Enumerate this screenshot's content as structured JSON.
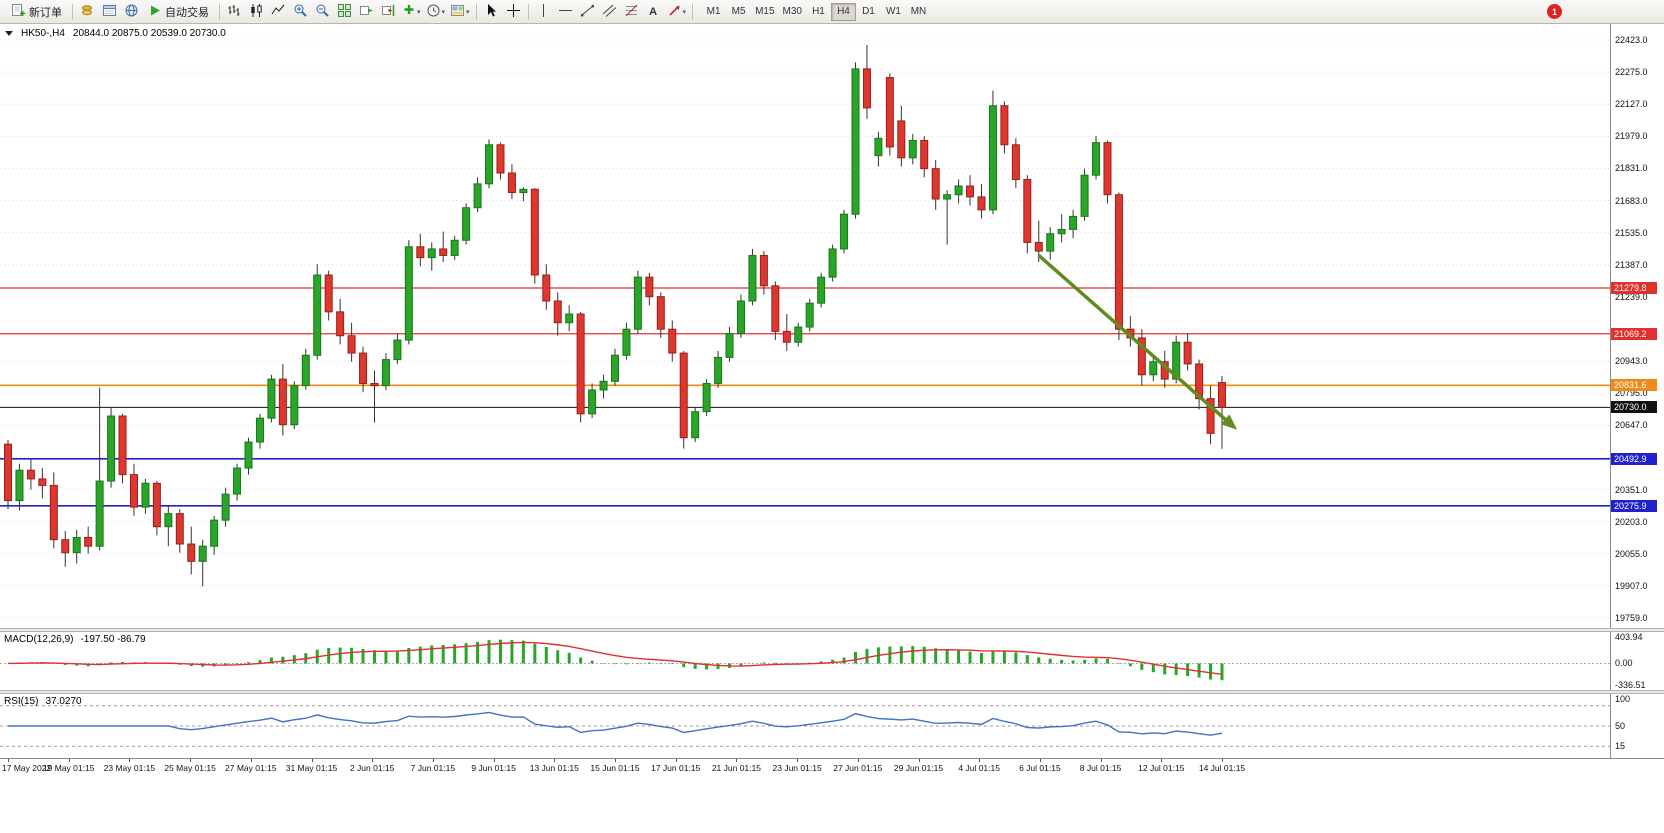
{
  "toolbar": {
    "new_order": "新订单",
    "autotrading": "自动交易",
    "text_tool": "A",
    "timeframes": [
      "M1",
      "M5",
      "M15",
      "M30",
      "H1",
      "H4",
      "D1",
      "W1",
      "MN"
    ],
    "active_timeframe": "H4",
    "notification_badge": "1"
  },
  "chart": {
    "symbol_period": "HK50-,H4",
    "ohlc_text": "20844.0 20875.0 20539.0 20730.0"
  },
  "colors": {
    "candle_up": "#2aa52a",
    "candle_up_border": "#157a15",
    "candle_down": "#dd3830",
    "candle_down_border": "#9c1f18",
    "wick": "#333333",
    "grid": "#dedede",
    "accent_red_line": "#e03030",
    "accent_orange_line": "#f08a18",
    "accent_blue_line": "#2222cc",
    "current_price": "#111111",
    "arrow_green": "#5e8c1f",
    "macd_histogram": "#2aa52a",
    "macd_signal": "#e03030",
    "rsi_line": "#3e74c2"
  },
  "chart_data": {
    "type": "candlestick",
    "symbol": "HK50-",
    "period": "H4",
    "current_bar": {
      "open": 20844.0,
      "high": 20875.0,
      "low": 20539.0,
      "close": 20730.0
    },
    "price_axis": {
      "min": 19759.0,
      "max": 22423.0,
      "grid_step": 148,
      "tick_labels": [
        "22423.0",
        "22275.0",
        "22127.0",
        "21979.0",
        "21831.0",
        "21683.0",
        "21535.0",
        "21387.0",
        "21239.0",
        "20943.0",
        "20795.0",
        "20647.0",
        "20351.0",
        "20203.0",
        "20055.0",
        "19907.0",
        "19759.0"
      ]
    },
    "hlines": [
      {
        "price": 21279.8,
        "label": "21279.8",
        "color": "#e03030",
        "width": 1.2
      },
      {
        "price": 21069.2,
        "label": "21069.2",
        "color": "#e03030",
        "width": 1.2
      },
      {
        "price": 20831.6,
        "label": "20831.6",
        "color": "#f08a18",
        "width": 1.6
      },
      {
        "price": 20730.0,
        "label": "20730.0",
        "color": "#111111",
        "width": 1
      },
      {
        "price": 20492.9,
        "label": "20492.9",
        "color": "#2222cc",
        "width": 1.6
      },
      {
        "price": 20275.9,
        "label": "20275.9",
        "color": "#2222cc",
        "width": 1.6
      }
    ],
    "arrow": {
      "from_index": 90,
      "from_price": 21430,
      "to_index": 106.6,
      "to_price": 20660,
      "color": "#5e8c1f"
    },
    "candles": [
      [
        20560,
        20580,
        20260,
        20300
      ],
      [
        20300,
        20470,
        20255,
        20440
      ],
      [
        20440,
        20490,
        20350,
        20400
      ],
      [
        20400,
        20450,
        20310,
        20370
      ],
      [
        20370,
        20430,
        20080,
        20120
      ],
      [
        20120,
        20160,
        19995,
        20060
      ],
      [
        20060,
        20165,
        20010,
        20130
      ],
      [
        20130,
        20180,
        20055,
        20090
      ],
      [
        20090,
        20820,
        20070,
        20390
      ],
      [
        20390,
        20730,
        20360,
        20690
      ],
      [
        20690,
        20700,
        20380,
        20420
      ],
      [
        20420,
        20470,
        20230,
        20270
      ],
      [
        20270,
        20400,
        20240,
        20380
      ],
      [
        20380,
        20390,
        20140,
        20180
      ],
      [
        20180,
        20280,
        20090,
        20240
      ],
      [
        20240,
        20260,
        20060,
        20100
      ],
      [
        20100,
        20180,
        19960,
        20020
      ],
      [
        20020,
        20120,
        19905,
        20090
      ],
      [
        20090,
        20230,
        20050,
        20210
      ],
      [
        20210,
        20360,
        20180,
        20330
      ],
      [
        20330,
        20470,
        20300,
        20450
      ],
      [
        20450,
        20590,
        20420,
        20570
      ],
      [
        20570,
        20700,
        20540,
        20680
      ],
      [
        20680,
        20880,
        20660,
        20860
      ],
      [
        20860,
        20930,
        20600,
        20650
      ],
      [
        20650,
        20850,
        20630,
        20830
      ],
      [
        20830,
        21000,
        20810,
        20970
      ],
      [
        20970,
        21390,
        20950,
        21340
      ],
      [
        21340,
        21360,
        21130,
        21170
      ],
      [
        21170,
        21230,
        21020,
        21060
      ],
      [
        21060,
        21120,
        20940,
        20980
      ],
      [
        20980,
        21010,
        20800,
        20840
      ],
      [
        20840,
        20900,
        20660,
        20830
      ],
      [
        20830,
        20980,
        20810,
        20950
      ],
      [
        20950,
        21070,
        20930,
        21040
      ],
      [
        21040,
        21500,
        21020,
        21470
      ],
      [
        21470,
        21530,
        21380,
        21420
      ],
      [
        21420,
        21490,
        21360,
        21460
      ],
      [
        21460,
        21540,
        21400,
        21430
      ],
      [
        21430,
        21520,
        21410,
        21500
      ],
      [
        21500,
        21670,
        21480,
        21650
      ],
      [
        21650,
        21790,
        21630,
        21760
      ],
      [
        21760,
        21965,
        21740,
        21940
      ],
      [
        21940,
        21950,
        21780,
        21810
      ],
      [
        21810,
        21850,
        21690,
        21720
      ],
      [
        21720,
        21745,
        21680,
        21735
      ],
      [
        21735,
        21740,
        21300,
        21340
      ],
      [
        21340,
        21390,
        21180,
        21220
      ],
      [
        21220,
        21260,
        21060,
        21120
      ],
      [
        21120,
        21200,
        21080,
        21160
      ],
      [
        21160,
        21170,
        20660,
        20700
      ],
      [
        20700,
        20840,
        20680,
        20810
      ],
      [
        20810,
        20880,
        20770,
        20850
      ],
      [
        20850,
        21000,
        20830,
        20970
      ],
      [
        20970,
        21120,
        20950,
        21090
      ],
      [
        21090,
        21360,
        21070,
        21330
      ],
      [
        21330,
        21350,
        21200,
        21240
      ],
      [
        21240,
        21260,
        21050,
        21090
      ],
      [
        21090,
        21130,
        20940,
        20980
      ],
      [
        20980,
        20990,
        20540,
        20590
      ],
      [
        20590,
        20730,
        20570,
        20710
      ],
      [
        20710,
        20860,
        20690,
        20840
      ],
      [
        20840,
        20990,
        20820,
        20960
      ],
      [
        20960,
        21100,
        20940,
        21070
      ],
      [
        21070,
        21250,
        21050,
        21220
      ],
      [
        21220,
        21460,
        21200,
        21430
      ],
      [
        21430,
        21450,
        21250,
        21290
      ],
      [
        21290,
        21310,
        21040,
        21080
      ],
      [
        21080,
        21160,
        20990,
        21030
      ],
      [
        21030,
        21120,
        21010,
        21100
      ],
      [
        21100,
        21230,
        21080,
        21210
      ],
      [
        21210,
        21350,
        21190,
        21330
      ],
      [
        21330,
        21480,
        21310,
        21460
      ],
      [
        21460,
        21640,
        21440,
        21620
      ],
      [
        21620,
        22320,
        21600,
        22290
      ],
      [
        22290,
        22400,
        22060,
        22110
      ],
      [
        21890,
        22000,
        21840,
        21970
      ],
      [
        22250,
        22270,
        21890,
        21930
      ],
      [
        22050,
        22120,
        21840,
        21880
      ],
      [
        21880,
        21990,
        21850,
        21960
      ],
      [
        21960,
        21980,
        21790,
        21830
      ],
      [
        21830,
        21870,
        21640,
        21690
      ],
      [
        21690,
        21730,
        21480,
        21710
      ],
      [
        21710,
        21780,
        21670,
        21750
      ],
      [
        21750,
        21800,
        21660,
        21700
      ],
      [
        21700,
        21760,
        21600,
        21640
      ],
      [
        21640,
        22190,
        21620,
        22120
      ],
      [
        22120,
        22140,
        21900,
        21940
      ],
      [
        21940,
        21970,
        21740,
        21780
      ],
      [
        21780,
        21800,
        21440,
        21490
      ],
      [
        21490,
        21590,
        21400,
        21450
      ],
      [
        21450,
        21560,
        21410,
        21530
      ],
      [
        21530,
        21620,
        21490,
        21550
      ],
      [
        21550,
        21640,
        21510,
        21610
      ],
      [
        21610,
        21830,
        21590,
        21800
      ],
      [
        21800,
        21980,
        21780,
        21950
      ],
      [
        21950,
        21960,
        21670,
        21710
      ],
      [
        21710,
        21720,
        21040,
        21090
      ],
      [
        21090,
        21150,
        21010,
        21050
      ],
      [
        21050,
        21090,
        20830,
        20880
      ],
      [
        20880,
        20970,
        20850,
        20940
      ],
      [
        20940,
        20990,
        20820,
        20860
      ],
      [
        20860,
        21060,
        20840,
        21030
      ],
      [
        21030,
        21070,
        20900,
        20930
      ],
      [
        20930,
        20950,
        20720,
        20770
      ],
      [
        20770,
        20830,
        20560,
        20610
      ],
      [
        20844,
        20875,
        20539,
        20730
      ]
    ],
    "time_labels": [
      "17 May 2022",
      "19 May 01:15",
      "23 May 01:15",
      "25 May 01:15",
      "27 May 01:15",
      "31 May 01:15",
      "2 Jun 01:15",
      "7 Jun 01:15",
      "9 Jun 01:15",
      "13 Jun 01:15",
      "15 Jun 01:15",
      "17 Jun 01:15",
      "21 Jun 01:15",
      "23 Jun 01:15",
      "27 Jun 01:15",
      "29 Jun 01:15",
      "4 Jul 01:15",
      "6 Jul 01:15",
      "8 Jul 01:15",
      "12 Jul 01:15",
      "14 Jul 01:15"
    ],
    "macd": {
      "label": "MACD(12,26,9)",
      "values_text": "-197.50 -86.79",
      "fast": 12,
      "slow": 26,
      "signal": 9,
      "axis_labels": [
        "403.94",
        "0.00",
        "-336.51"
      ],
      "range": [
        -336.51,
        403.94
      ],
      "histogram_color": "#2aa52a",
      "signal_color": "#e03030"
    },
    "rsi": {
      "label": "RSI(15)",
      "value_text": "37.0270",
      "period": 15,
      "axis_labels": [
        "100",
        "50",
        "15"
      ],
      "levels": [
        85,
        50,
        15
      ],
      "range": [
        0,
        100
      ],
      "line_color": "#3e74c2"
    }
  }
}
